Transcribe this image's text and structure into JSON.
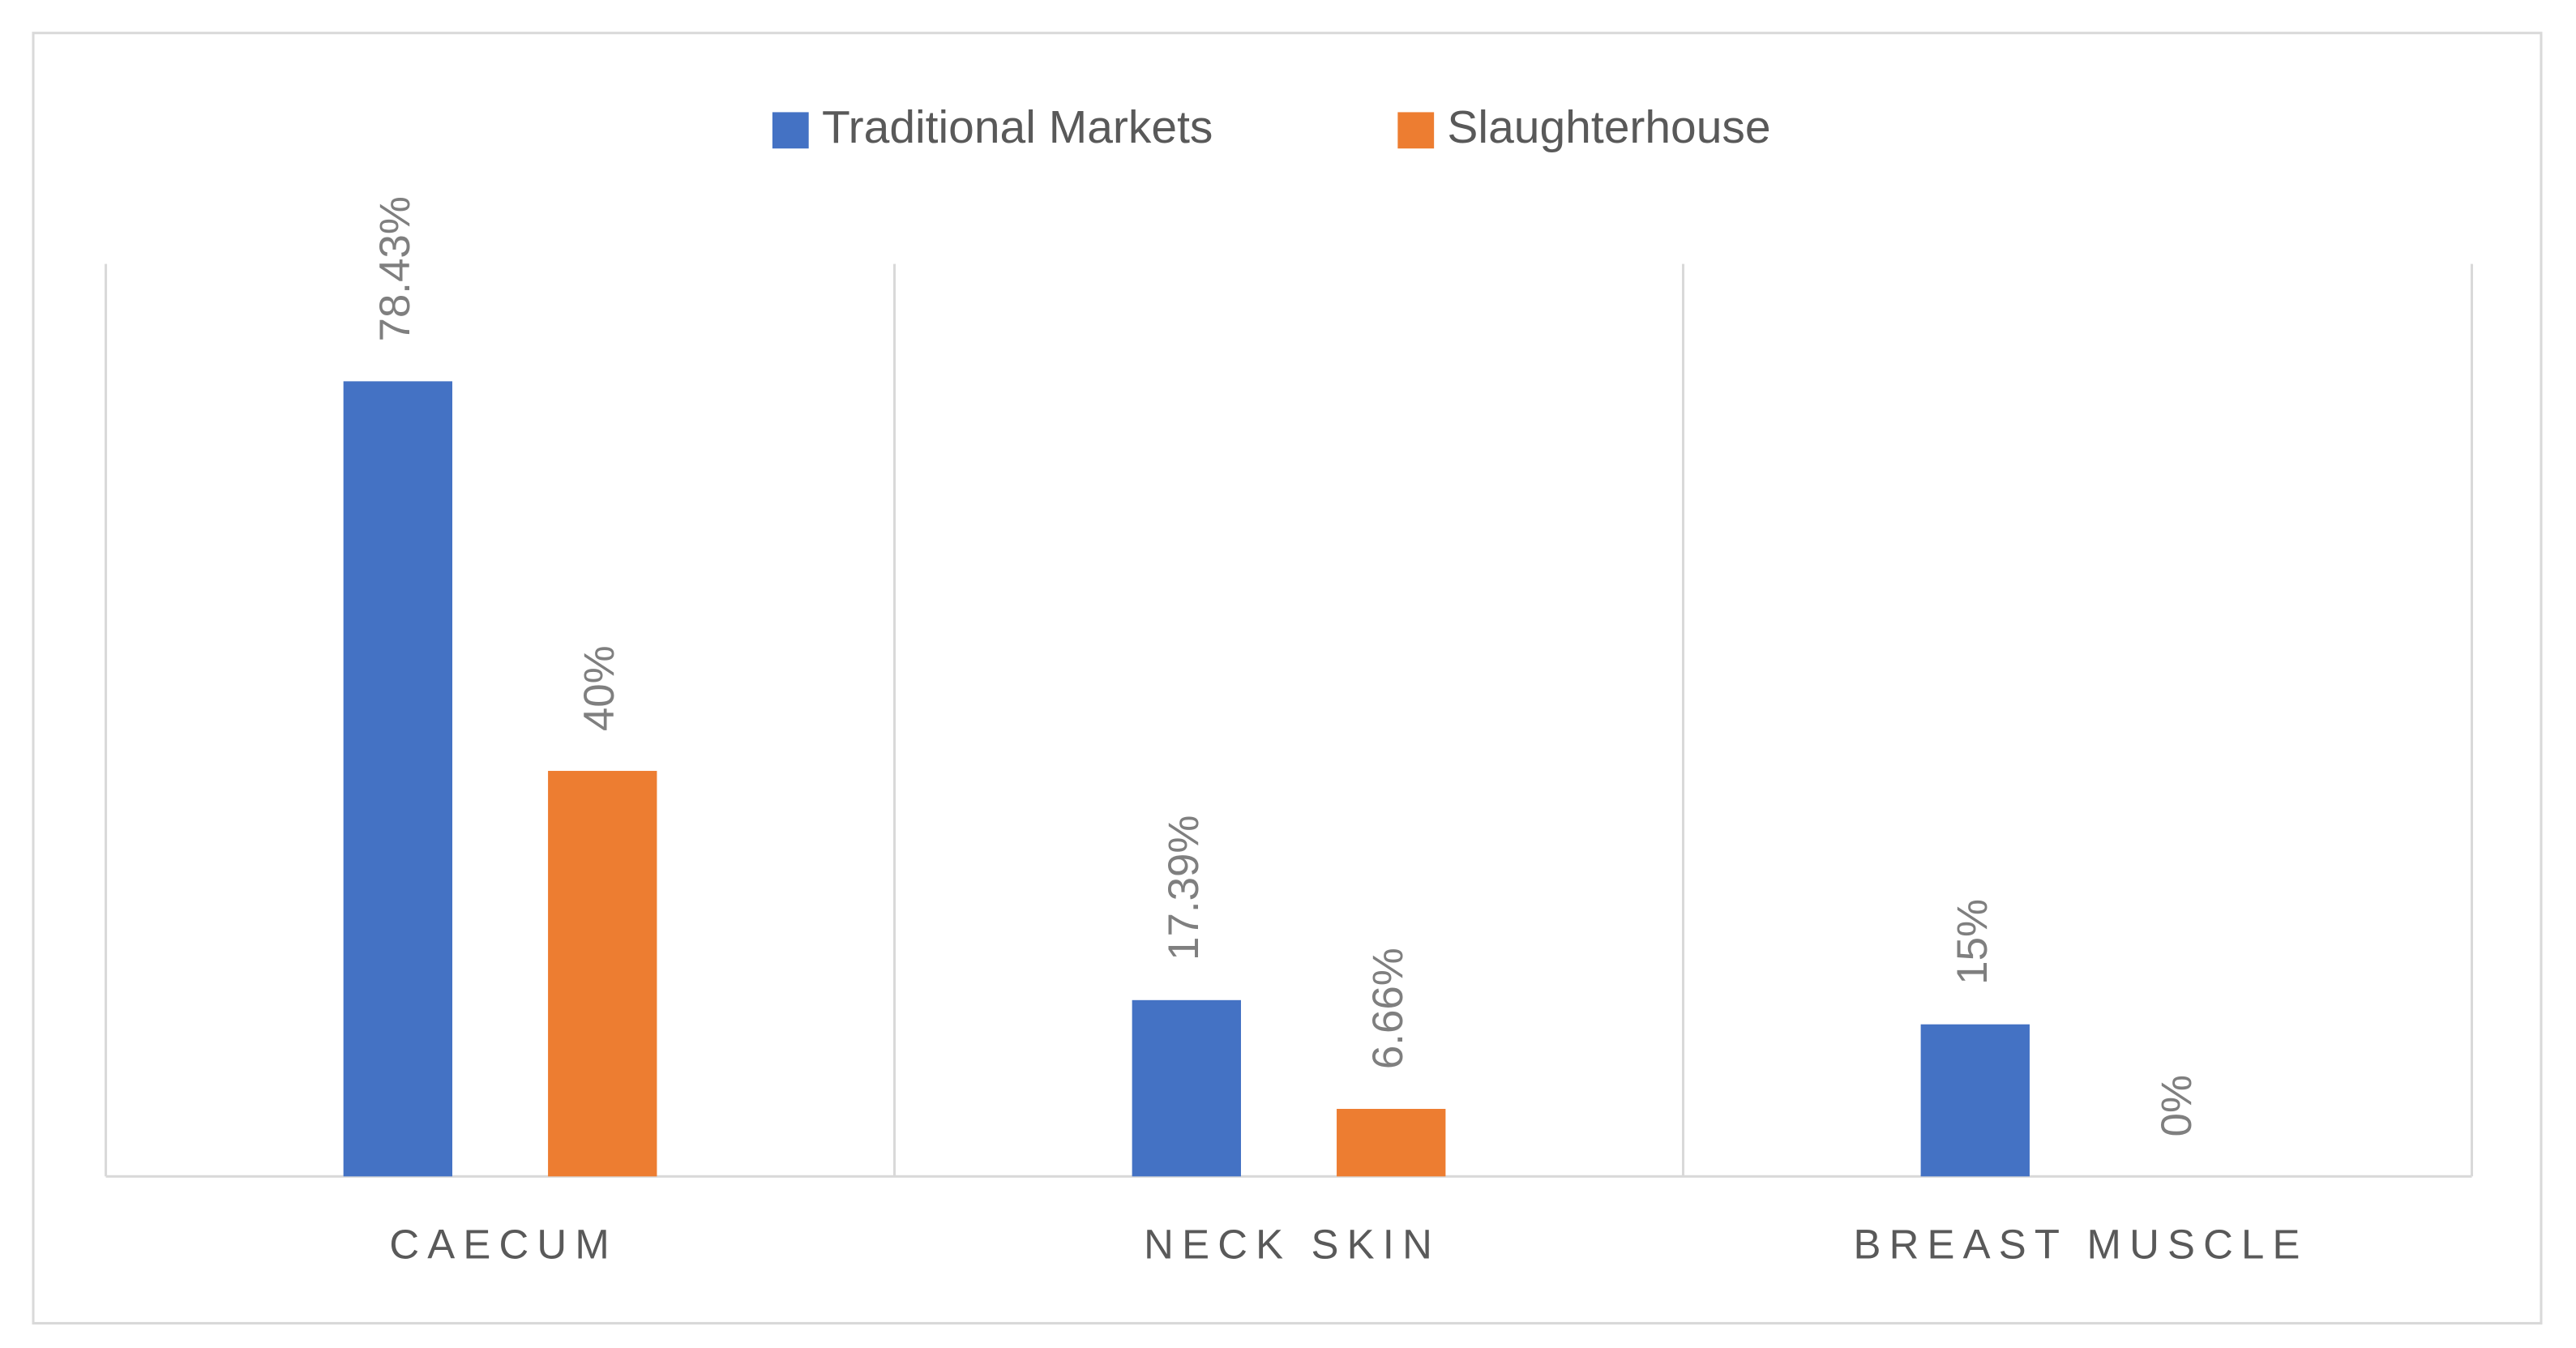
{
  "chart_data": {
    "type": "bar",
    "categories": [
      "CAECUM",
      "NECK SKIN",
      "BREAST MUSCLE"
    ],
    "series": [
      {
        "name": "Traditional Markets",
        "color": "#4472c4",
        "values": [
          78.43,
          17.39,
          15
        ],
        "value_labels": [
          "78.43%",
          "17.39%",
          "15%"
        ]
      },
      {
        "name": "Slaughterhouse",
        "color": "#ed7d31",
        "values": [
          40,
          6.66,
          0
        ],
        "value_labels": [
          "40%",
          "6.66%",
          "0%"
        ]
      }
    ],
    "ylim": [
      0,
      90
    ],
    "legend": "top"
  }
}
